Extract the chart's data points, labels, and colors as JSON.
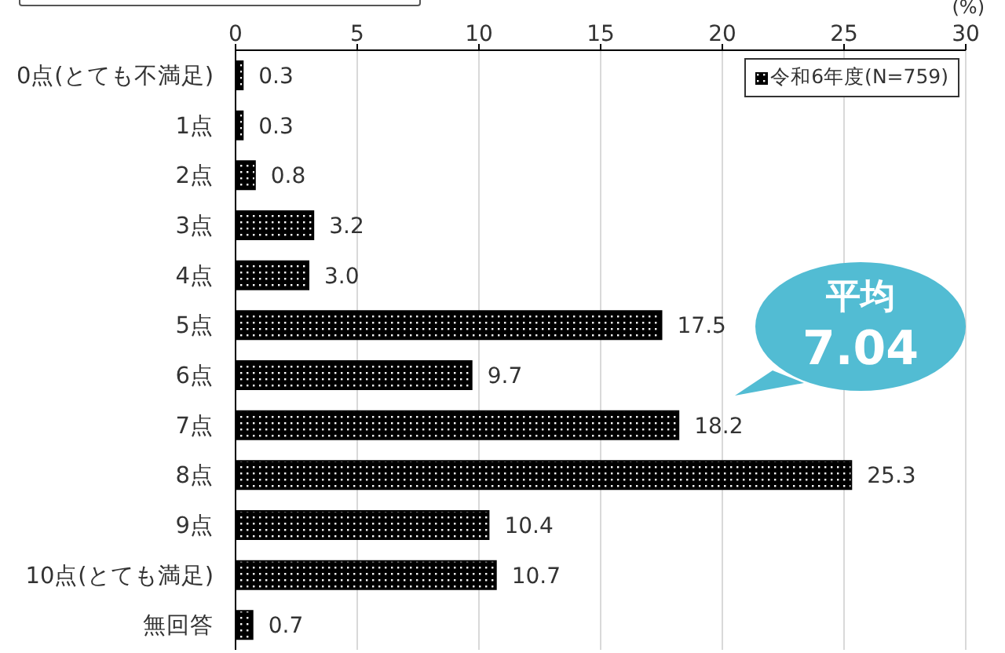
{
  "chart_data": {
    "type": "bar",
    "orientation": "horizontal",
    "categories": [
      "0点(とても不満足)",
      "1点",
      "2点",
      "3点",
      "4点",
      "5点",
      "6点",
      "7点",
      "8点",
      "9点",
      "10点(とても満足)",
      "無回答"
    ],
    "series": [
      {
        "name": "令和6年度(N=759)",
        "color": "#000000",
        "values": [
          0.3,
          0.3,
          0.8,
          3.2,
          3.0,
          17.5,
          9.7,
          18.2,
          25.3,
          10.4,
          10.7,
          0.7
        ],
        "value_labels": [
          "0.3",
          "0.3",
          "0.8",
          "3.2",
          "3.0",
          "17.5",
          "9.7",
          "18.2",
          "25.3",
          "10.4",
          "10.7",
          "0.7"
        ]
      }
    ],
    "xlabel": "(%)",
    "xlim": [
      0,
      30
    ],
    "xticks": [
      0,
      5,
      10,
      15,
      20,
      25,
      30
    ],
    "grid": "x",
    "legend": "top right",
    "annotations": [
      "平均\n7.04"
    ]
  }
}
